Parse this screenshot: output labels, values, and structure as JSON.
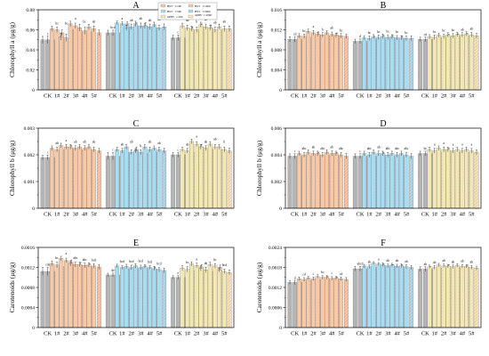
{
  "colors": {
    "CK": "#b4b4b4",
    "stage1": "#f7c9a6",
    "stage2": "#a9dcf0",
    "stage3": "#f3e8b3",
    "hatch": "#e06a8a"
  },
  "legend": [
    "HST · 1:100",
    "HST · 1:1000",
    "HST · 1:500",
    "HST · 1:5000",
    "nZPB · 1:100",
    "nZPB · 1:1000"
  ],
  "chart_data": [
    {
      "type": "bar",
      "title": "A",
      "ylabel": "Chlorophyll a (μg/g)",
      "ylim": [
        0,
        0.08
      ],
      "yticks": [
        "0",
        "0.02",
        "0.04",
        "0.06",
        "0.08"
      ],
      "categories": [
        "CK",
        "1#",
        "2#",
        "3#",
        "4#",
        "5#",
        "CK",
        "1#",
        "2#",
        "3#",
        "4#",
        "5#",
        "CK",
        "1#",
        "2#",
        "3#",
        "4#",
        "5#"
      ],
      "series": [
        {
          "values": [
            0.05,
            0.061,
            0.053,
            0.066,
            0.062,
            0.063,
            0.057,
            0.067,
            0.062,
            0.066,
            0.064,
            0.065,
            0.052,
            0.064,
            0.061,
            0.065,
            0.062,
            0.063
          ]
        },
        {
          "values": [
            0.05,
            0.06,
            0.052,
            0.064,
            0.059,
            0.061,
            0.057,
            0.066,
            0.063,
            0.064,
            0.063,
            0.062,
            0.052,
            0.062,
            0.06,
            0.063,
            0.06,
            0.061
          ]
        },
        {
          "values": [
            0.05,
            0.057,
            0.06,
            0.059,
            0.058,
            0.057,
            0.057,
            0.066,
            0.064,
            0.064,
            0.062,
            0.063,
            0.052,
            0.06,
            0.063,
            0.062,
            0.06,
            0.061
          ]
        }
      ],
      "errors": [
        0.004,
        0.003,
        0.004,
        0.003,
        0.004,
        0.003,
        0.003,
        0.002,
        0.003,
        0.003,
        0.003,
        0.003,
        0.003,
        0.003,
        0.003,
        0.003,
        0.003,
        0.003
      ],
      "labels": [
        "c",
        "bc",
        "bc",
        "a",
        "bc",
        "ab",
        "bcd",
        "a",
        "ab",
        "ab",
        "ab",
        "ab",
        "c",
        "ab",
        "b",
        "ab",
        "ab",
        "ab"
      ]
    },
    {
      "type": "bar",
      "title": "B",
      "ylabel": "Chlorophyll a (μg/g)",
      "ylim": [
        0,
        0.016
      ],
      "yticks": [
        "0",
        "0.004",
        "0.008",
        "0.012",
        "0.016"
      ],
      "categories": [
        "CK",
        "1#",
        "2#",
        "3#",
        "4#",
        "5#",
        "CK",
        "1#",
        "2#",
        "3#",
        "4#",
        "5#",
        "CK",
        "1#",
        "2#",
        "3#",
        "4#",
        "5#"
      ],
      "series": [
        {
          "values": [
            0.0101,
            0.0108,
            0.0117,
            0.0111,
            0.0114,
            0.0109,
            0.0097,
            0.0104,
            0.0106,
            0.0107,
            0.0106,
            0.0104,
            0.0101,
            0.0106,
            0.0109,
            0.011,
            0.0111,
            0.0112
          ]
        },
        {
          "values": [
            0.0101,
            0.0107,
            0.0114,
            0.011,
            0.0111,
            0.0108,
            0.0097,
            0.0103,
            0.0105,
            0.0105,
            0.0104,
            0.0103,
            0.0101,
            0.0105,
            0.0107,
            0.0108,
            0.011,
            0.011
          ]
        },
        {
          "values": [
            0.0101,
            0.0105,
            0.0111,
            0.0108,
            0.0109,
            0.0107,
            0.0097,
            0.0102,
            0.0104,
            0.0104,
            0.0103,
            0.0103,
            0.0101,
            0.0104,
            0.0106,
            0.0107,
            0.0108,
            0.0108
          ]
        }
      ],
      "errors": [
        0.0006,
        0.0005,
        0.0005,
        0.0005,
        0.0005,
        0.0005,
        0.0005,
        0.0005,
        0.0005,
        0.0005,
        0.0005,
        0.0005,
        0.0005,
        0.0005,
        0.0005,
        0.0005,
        0.0005,
        0.0005
      ],
      "labels": [
        "cd",
        "bc",
        "a",
        "b",
        "ab",
        "bc",
        "d",
        "bc",
        "bc",
        "bc",
        "bc",
        "bc",
        "cd",
        "bc",
        "bc",
        "bc",
        "ab",
        "ab"
      ]
    },
    {
      "type": "bar",
      "title": "C",
      "ylabel": "Chlorophyll b (μg/g)",
      "ylim": [
        0,
        0.003
      ],
      "yticks": [
        "0",
        "0.001",
        "0.002",
        "0.003"
      ],
      "categories": [
        "CK",
        "1#",
        "2#",
        "3#",
        "4#",
        "5#",
        "CK",
        "1#",
        "2#",
        "3#",
        "4#",
        "5#",
        "CK",
        "1#",
        "2#",
        "3#",
        "4#",
        "5#"
      ],
      "series": [
        {
          "values": [
            0.0019,
            0.00225,
            0.00235,
            0.0023,
            0.0023,
            0.0023,
            0.00195,
            0.0022,
            0.0023,
            0.00215,
            0.0023,
            0.00225,
            0.002,
            0.0022,
            0.0025,
            0.0023,
            0.0024,
            0.0023
          ]
        },
        {
          "values": [
            0.0019,
            0.0022,
            0.0023,
            0.00225,
            0.00225,
            0.0022,
            0.00195,
            0.00215,
            0.0021,
            0.0021,
            0.0022,
            0.0022,
            0.002,
            0.00215,
            0.0024,
            0.00225,
            0.0023,
            0.0022
          ]
        },
        {
          "values": [
            0.0019,
            0.0022,
            0.00225,
            0.0022,
            0.0022,
            0.00215,
            0.00195,
            0.0021,
            0.0022,
            0.00205,
            0.0021,
            0.00215,
            0.002,
            0.0021,
            0.0023,
            0.0022,
            0.0022,
            0.00215
          ]
        }
      ],
      "errors": [
        0.0001,
        0.0001,
        0.0001,
        0.0001,
        0.0001,
        0.0001,
        0.00015,
        0.0001,
        0.0001,
        0.0001,
        0.0001,
        0.0001,
        0.0001,
        0.0001,
        0.0001,
        0.0001,
        0.0001,
        0.0001
      ],
      "labels": [
        "c",
        "ab",
        "a",
        "ab",
        "ab",
        "ab",
        "c",
        "ab",
        "ab",
        "b",
        "ab",
        "ab",
        "c",
        "ab",
        "a",
        "ab",
        "ab",
        "b"
      ]
    },
    {
      "type": "bar",
      "title": "D",
      "ylabel": "Chlorophyll b (μg/g)",
      "ylim": [
        0,
        0.006
      ],
      "yticks": [
        "0",
        "0.002",
        "0.004",
        "0.006"
      ],
      "categories": [
        "CK",
        "1#",
        "2#",
        "3#",
        "4#",
        "5#",
        "CK",
        "1#",
        "2#",
        "3#",
        "4#",
        "5#",
        "CK",
        "1#",
        "2#",
        "3#",
        "4#",
        "5#"
      ],
      "series": [
        {
          "values": [
            0.0039,
            0.0041,
            0.0042,
            0.0041,
            0.0042,
            0.0041,
            0.0039,
            0.0041,
            0.0042,
            0.0041,
            0.0041,
            0.0041,
            0.0041,
            0.0044,
            0.0045,
            0.0044,
            0.0044,
            0.0044
          ]
        },
        {
          "values": [
            0.0039,
            0.004,
            0.0041,
            0.004,
            0.0041,
            0.004,
            0.0039,
            0.004,
            0.0041,
            0.004,
            0.004,
            0.004,
            0.0041,
            0.0043,
            0.0044,
            0.0043,
            0.0043,
            0.0043
          ]
        },
        {
          "values": [
            0.0039,
            0.0039,
            0.004,
            0.004,
            0.004,
            0.0039,
            0.0039,
            0.0039,
            0.004,
            0.0039,
            0.0039,
            0.0039,
            0.0041,
            0.0042,
            0.0043,
            0.0042,
            0.0042,
            0.0042
          ]
        }
      ],
      "errors": [
        0.0002,
        0.0002,
        0.0002,
        0.0002,
        0.0002,
        0.0002,
        0.0002,
        0.0002,
        0.0002,
        0.0002,
        0.0002,
        0.0002,
        0.0002,
        0.0002,
        0.0002,
        0.0002,
        0.0002,
        0.0002
      ],
      "labels": [
        "c",
        "abc",
        "ab",
        "abc",
        "ab",
        "abc",
        "c",
        "abc",
        "ab",
        "abc",
        "abc",
        "abc",
        "bc",
        "a",
        "a",
        "a",
        "a",
        "a"
      ]
    },
    {
      "type": "bar",
      "title": "E",
      "ylabel": "Carotenoids (μg/g)",
      "ylim": [
        0,
        0.0016
      ],
      "yticks": [
        "0",
        "0.0004",
        "0.0008",
        "0.0012",
        "0.0016"
      ],
      "categories": [
        "CK",
        "1#",
        "2#",
        "3#",
        "4#",
        "5#",
        "CK",
        "1#",
        "2#",
        "3#",
        "4#",
        "5#",
        "CK",
        "1#",
        "2#",
        "3#",
        "4#",
        "5#"
      ],
      "series": [
        {
          "values": [
            0.00112,
            0.00128,
            0.00138,
            0.00128,
            0.00126,
            0.00125,
            0.00105,
            0.00123,
            0.00122,
            0.00123,
            0.00122,
            0.00118,
            0.001,
            0.00119,
            0.00127,
            0.00118,
            0.00126,
            0.00115
          ]
        },
        {
          "values": [
            0.00112,
            0.00125,
            0.00134,
            0.00126,
            0.00124,
            0.00123,
            0.00105,
            0.0012,
            0.0012,
            0.0012,
            0.0012,
            0.00116,
            0.001,
            0.00116,
            0.00124,
            0.00115,
            0.00123,
            0.00112
          ]
        },
        {
          "values": [
            0.00112,
            0.00122,
            0.0013,
            0.00124,
            0.00122,
            0.00121,
            0.00105,
            0.00117,
            0.00118,
            0.00118,
            0.00117,
            0.00114,
            0.001,
            0.00113,
            0.00121,
            0.00112,
            0.0012,
            0.0011
          ]
        }
      ],
      "errors": [
        9e-05,
        6e-05,
        5e-05,
        6e-05,
        5e-05,
        5e-05,
        4e-05,
        4e-05,
        5e-05,
        5e-05,
        4e-05,
        5e-05,
        4e-05,
        6e-05,
        5e-05,
        6e-05,
        5e-05,
        5e-05
      ],
      "labels": [
        "cde",
        "bc",
        "a",
        "abc",
        "abc",
        "bcd",
        "de",
        "bcd",
        "bcd",
        "bcd",
        "bcd",
        "bcd",
        "e",
        "bc",
        "a",
        "ab",
        "bc",
        "bcd"
      ]
    },
    {
      "type": "bar",
      "title": "F",
      "ylabel": "Carotenoids (μg/g)",
      "ylim": [
        0,
        0.0024
      ],
      "yticks": [
        "0",
        "0.0006",
        "0.0012",
        "0.0018",
        "0.0024"
      ],
      "categories": [
        "CK",
        "1#",
        "2#",
        "3#",
        "4#",
        "5#",
        "CK",
        "1#",
        "2#",
        "3#",
        "4#",
        "5#",
        "CK",
        "1#",
        "2#",
        "3#",
        "4#",
        "5#"
      ],
      "series": [
        {
          "values": [
            0.00135,
            0.00146,
            0.00148,
            0.00153,
            0.0015,
            0.00148,
            0.00176,
            0.00184,
            0.00193,
            0.00188,
            0.00187,
            0.00185,
            0.00175,
            0.00182,
            0.00187,
            0.00184,
            0.00186,
            0.00183
          ]
        },
        {
          "values": [
            0.00135,
            0.00144,
            0.00146,
            0.0015,
            0.00147,
            0.00146,
            0.00176,
            0.00182,
            0.0019,
            0.00185,
            0.00184,
            0.00182,
            0.00175,
            0.0018,
            0.00185,
            0.00182,
            0.00183,
            0.0018
          ]
        },
        {
          "values": [
            0.00135,
            0.00142,
            0.00143,
            0.00147,
            0.00145,
            0.00144,
            0.00176,
            0.0018,
            0.00186,
            0.00183,
            0.00182,
            0.0018,
            0.00175,
            0.00178,
            0.00182,
            0.00179,
            0.00181,
            0.00178
          ]
        }
      ],
      "errors": [
        7e-05,
        6e-05,
        6e-05,
        6e-05,
        6e-05,
        6e-05,
        8e-05,
        6e-05,
        5e-05,
        6e-05,
        6e-05,
        6e-05,
        8e-05,
        6e-05,
        6e-05,
        6e-05,
        6e-05,
        6e-05
      ],
      "labels": [
        "d",
        "cd",
        "c",
        "bc",
        "c",
        "cd",
        "abcd",
        "ab",
        "a",
        "ab",
        "ab",
        "ab",
        "ab",
        "ab",
        "ab",
        "ab",
        "ab",
        "ab"
      ]
    }
  ]
}
